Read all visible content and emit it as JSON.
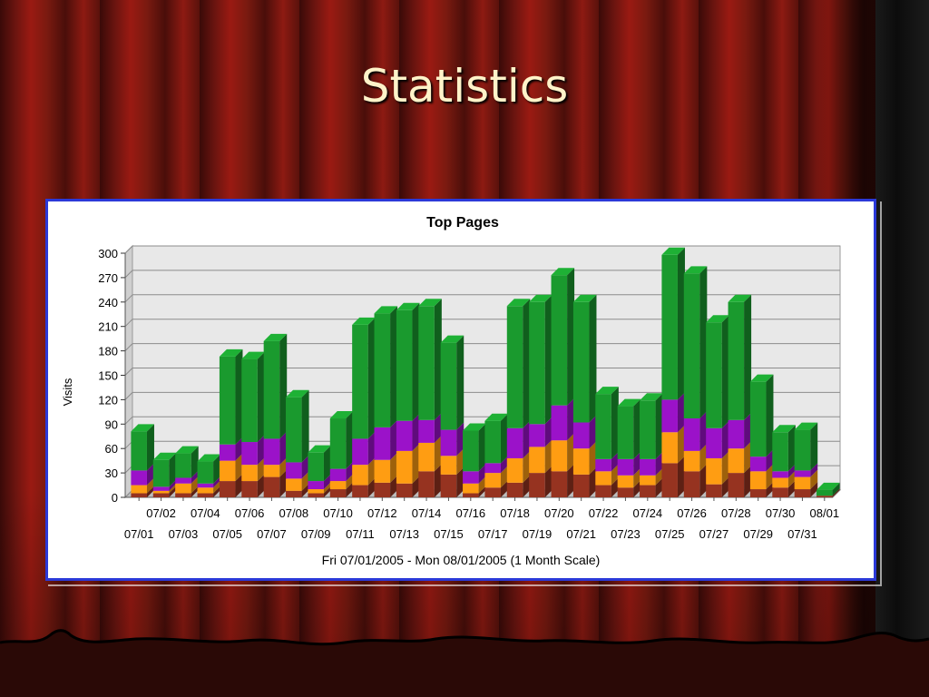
{
  "slide": {
    "title": "Statistics"
  },
  "colors": {
    "green": "#1a9a2e",
    "purple": "#9b12c9",
    "orange": "#ff9d12",
    "maroon": "#963320",
    "panel_border": "#2b39d8",
    "title": "#fff3c9"
  },
  "chart_data": {
    "type": "bar",
    "stacked": true,
    "title": "Top Pages",
    "xlabel": "Fri 07/01/2005 - Mon 08/01/2005 (1 Month Scale)",
    "ylabel": "Visits",
    "ylim": [
      0,
      300
    ],
    "yticks": [
      0,
      30,
      60,
      90,
      120,
      150,
      180,
      210,
      240,
      270,
      300
    ],
    "grid": true,
    "categories": [
      "07/01",
      "07/02",
      "07/03",
      "07/04",
      "07/05",
      "07/06",
      "07/07",
      "07/08",
      "07/09",
      "07/10",
      "07/11",
      "07/12",
      "07/13",
      "07/14",
      "07/15",
      "07/16",
      "07/17",
      "07/18",
      "07/19",
      "07/20",
      "07/21",
      "07/22",
      "07/23",
      "07/24",
      "07/25",
      "07/26",
      "07/27",
      "07/28",
      "07/29",
      "07/30",
      "07/31",
      "08/01"
    ],
    "series": [
      {
        "values": [
          5,
          5,
          5,
          5,
          20,
          20,
          25,
          8,
          5,
          10,
          15,
          18,
          17,
          32,
          28,
          5,
          12,
          18,
          30,
          32,
          28,
          15,
          12,
          15,
          42,
          32,
          16,
          30,
          10,
          12,
          10,
          2
        ]
      },
      {
        "values": [
          10,
          3,
          12,
          7,
          25,
          20,
          15,
          15,
          5,
          10,
          25,
          28,
          40,
          35,
          23,
          12,
          18,
          30,
          32,
          38,
          32,
          17,
          15,
          12,
          38,
          25,
          32,
          30,
          22,
          12,
          15,
          0
        ]
      },
      {
        "values": [
          18,
          5,
          7,
          5,
          20,
          28,
          32,
          20,
          10,
          15,
          32,
          40,
          37,
          28,
          32,
          15,
          12,
          37,
          28,
          43,
          32,
          15,
          20,
          20,
          40,
          40,
          37,
          35,
          18,
          8,
          8,
          0
        ]
      },
      {
        "values": [
          48,
          33,
          30,
          27,
          108,
          102,
          120,
          80,
          35,
          62,
          140,
          140,
          136,
          140,
          107,
          50,
          52,
          150,
          150,
          160,
          148,
          80,
          65,
          72,
          178,
          178,
          130,
          145,
          92,
          48,
          50,
          7
        ]
      }
    ]
  }
}
